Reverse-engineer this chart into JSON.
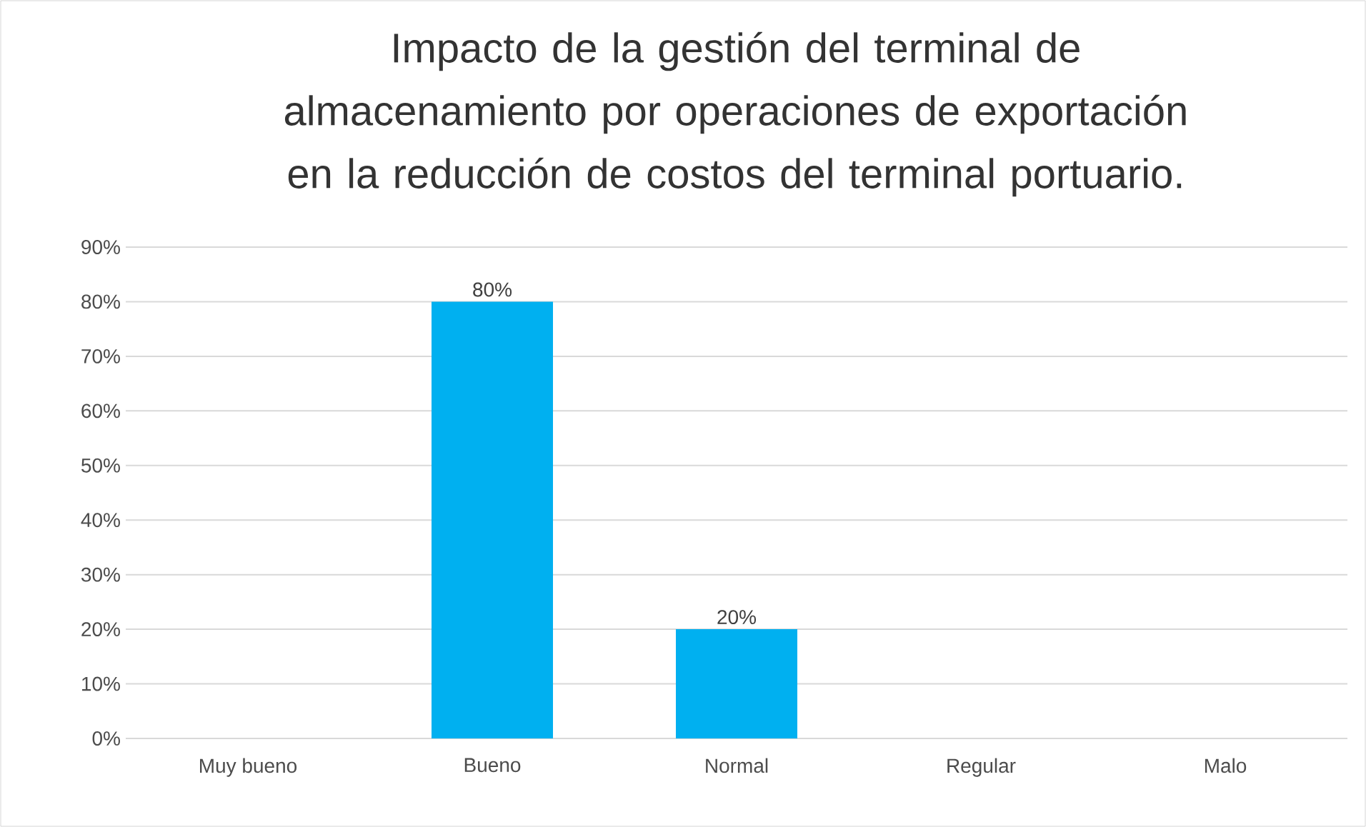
{
  "chart_data": {
    "type": "bar",
    "title": "Impacto de la gestión del terminal de almacenamiento por operaciones de exportación en la reducción de costos del terminal portuario.",
    "categories": [
      "Muy bueno",
      "Bueno",
      "Normal",
      "Regular",
      "Malo"
    ],
    "values": [
      0,
      80,
      20,
      0,
      0
    ],
    "value_labels": [
      null,
      "80%",
      "20%",
      null,
      null
    ],
    "color": "#00b0f0",
    "ylim": [
      0,
      90
    ],
    "yticks": [
      {
        "value": 0,
        "label": "0%"
      },
      {
        "value": 10,
        "label": "10%"
      },
      {
        "value": 20,
        "label": "20%"
      },
      {
        "value": 30,
        "label": "30%"
      },
      {
        "value": 40,
        "label": "40%"
      },
      {
        "value": 50,
        "label": "50%"
      },
      {
        "value": 60,
        "label": "60%"
      },
      {
        "value": 70,
        "label": "70%"
      },
      {
        "value": 80,
        "label": "80%"
      },
      {
        "value": 90,
        "label": "90%"
      }
    ],
    "grid": "y"
  }
}
